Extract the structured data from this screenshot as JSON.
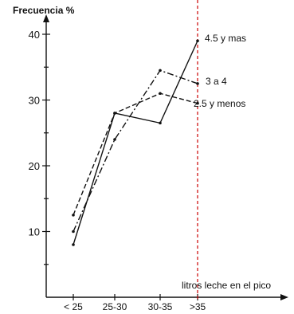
{
  "chart_data": {
    "type": "line",
    "title": "",
    "ylabel": "Frecuencia %",
    "xlabel": "litros leche en el pico",
    "categories": [
      "< 25",
      "25-30",
      "30-35",
      ">35"
    ],
    "ylim": [
      0,
      40
    ],
    "yticks": [
      10,
      20,
      30,
      40
    ],
    "grid": false,
    "legend": "inline labels at right end of lines",
    "series": [
      {
        "name": "4.5 y mas",
        "values": [
          8,
          28,
          26.5,
          39
        ],
        "style": "solid"
      },
      {
        "name": "3 a 4",
        "values": [
          10,
          24,
          34.5,
          32.5
        ],
        "style": "dash-dot"
      },
      {
        "name": "2.5 y menos",
        "values": [
          12.5,
          28,
          31,
          29.5
        ],
        "style": "dashed"
      }
    ],
    "reference_line": {
      "category": ">35",
      "color": "#cc0000",
      "style": "dashed"
    },
    "line_color": "#111111"
  }
}
